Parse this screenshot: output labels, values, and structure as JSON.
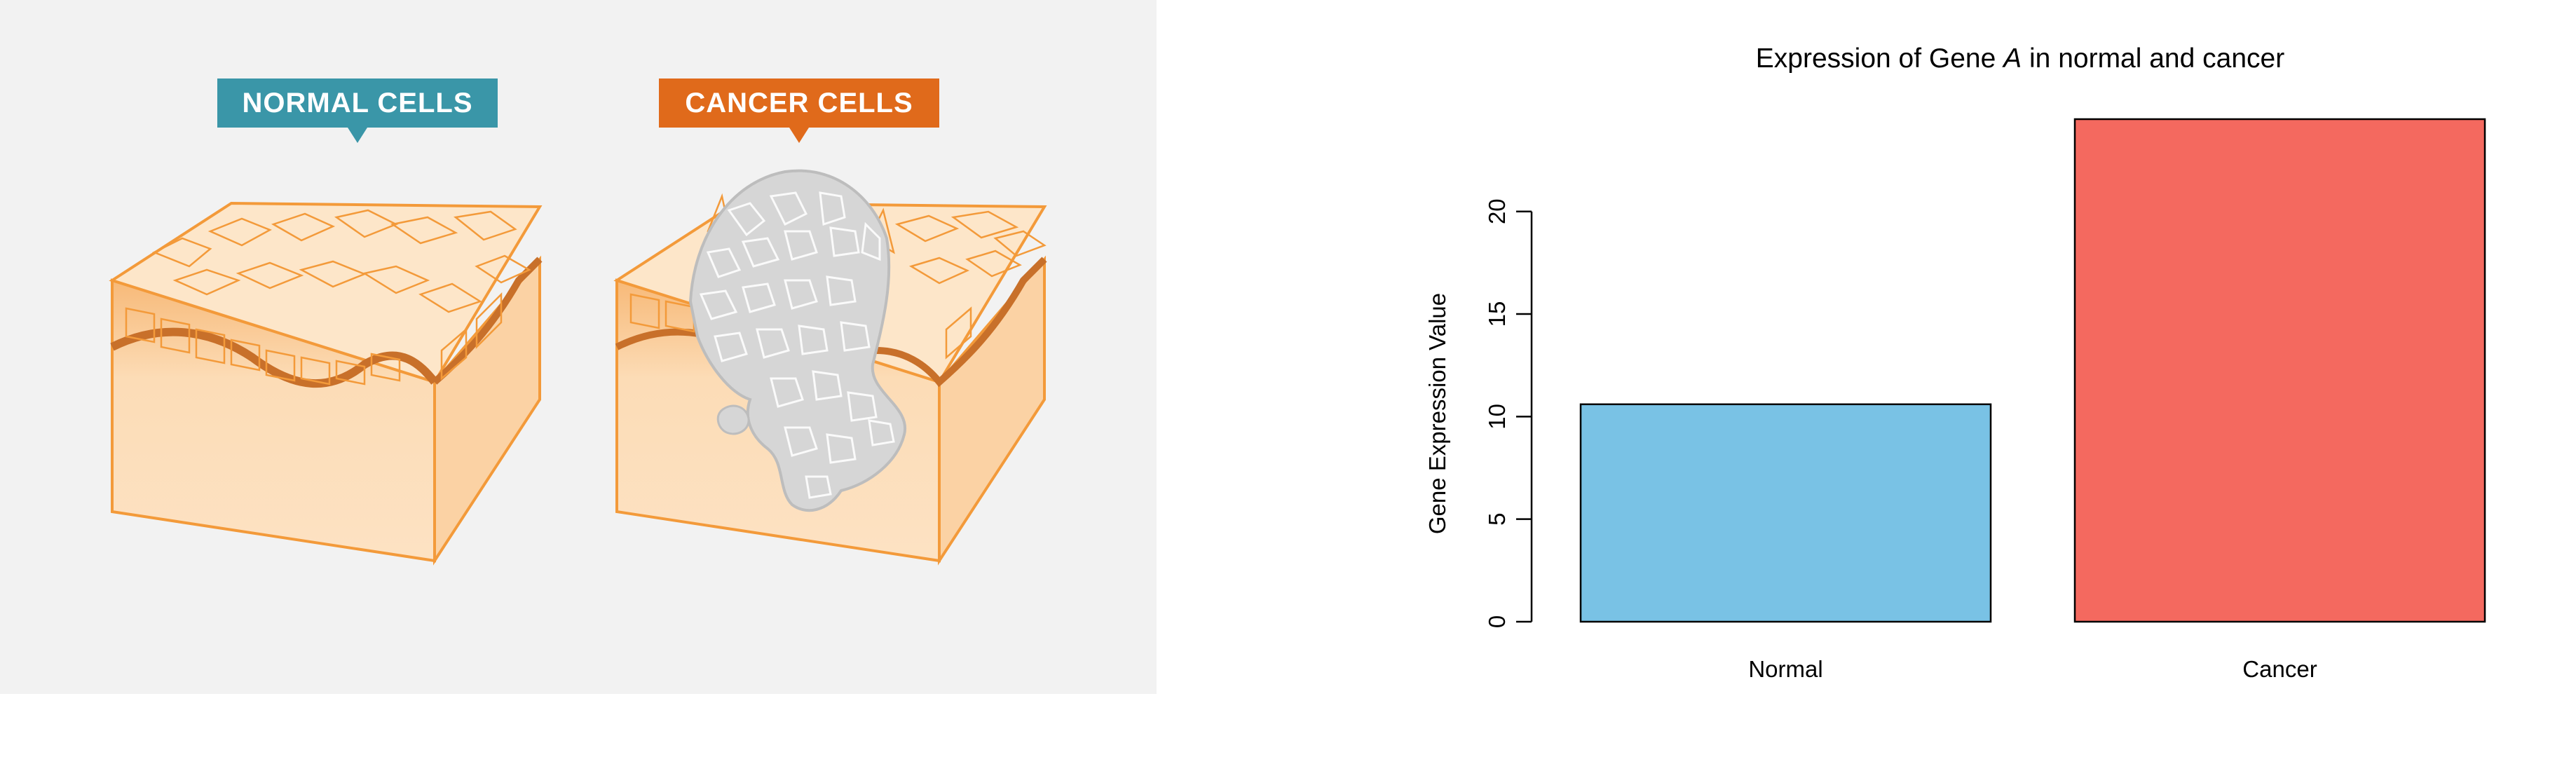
{
  "illustration": {
    "normal_label": "NORMAL CELLS",
    "cancer_label": "CANCER CELLS",
    "colors": {
      "normal_label_bg": "#3a96a8",
      "cancer_label_bg": "#e06a1b",
      "tissue_fill": "#fcdcb6",
      "tissue_outline": "#f39a3a",
      "basement_membrane": "#c8702a",
      "tumor_fill": "#d6d6d6"
    }
  },
  "chart_data": {
    "type": "bar",
    "title_prefix": "Expression of Gene ",
    "title_gene": "A",
    "title_suffix": " in normal and cancer",
    "xlabel": "",
    "ylabel": "Gene Expression Value",
    "categories": [
      "Normal",
      "Cancer"
    ],
    "values": [
      10.6,
      24.5
    ],
    "colors": [
      "#79c2e5",
      "#f4695f"
    ],
    "ylim": [
      0,
      24.5
    ],
    "yticks": [
      0,
      5,
      10,
      15,
      20
    ],
    "grid": false
  }
}
